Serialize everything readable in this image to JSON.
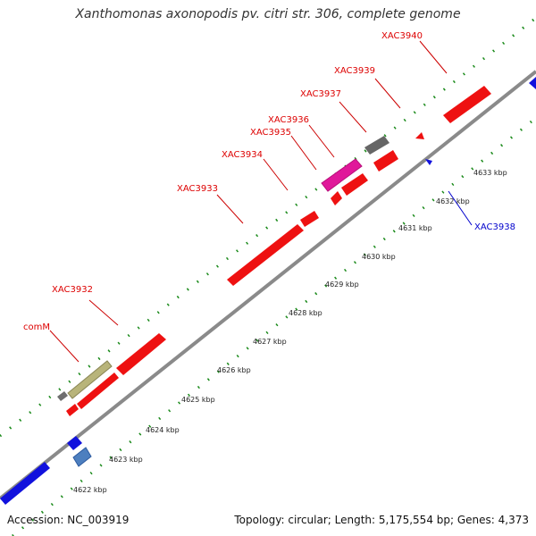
{
  "title": "Xanthomonas axonopodis pv. citri str. 306, complete genome",
  "footer": {
    "accession": "Accession: NC_003919",
    "topology": "Topology: circular; Length: 5,175,554 bp; Genes: 4,373"
  },
  "colors": {
    "forward_gene": "#ee1111",
    "reverse_gene": "#1111dd",
    "backbone": "#8a8a8a",
    "grid_dots": "#1a8a1a",
    "label_forward": "#dd0000",
    "label_reverse": "#0000cc"
  },
  "ticks": [
    "4622 kbp",
    "4623 kbp",
    "4624 kbp",
    "4625 kbp",
    "4626 kbp",
    "4627 kbp",
    "4628 kbp",
    "4629 kbp",
    "4630 kbp",
    "4631 kbp",
    "4632 kbp",
    "4633 kbp"
  ],
  "gene_labels": [
    {
      "text": "comM",
      "strand": "forward"
    },
    {
      "text": "XAC3932",
      "strand": "forward"
    },
    {
      "text": "XAC3933",
      "strand": "forward"
    },
    {
      "text": "XAC3934",
      "strand": "forward"
    },
    {
      "text": "XAC3935",
      "strand": "forward"
    },
    {
      "text": "XAC3936",
      "strand": "forward"
    },
    {
      "text": "XAC3937",
      "strand": "forward"
    },
    {
      "text": "XAC3939",
      "strand": "forward"
    },
    {
      "text": "XAC3940",
      "strand": "forward"
    },
    {
      "text": "XAC3938",
      "strand": "reverse"
    }
  ]
}
